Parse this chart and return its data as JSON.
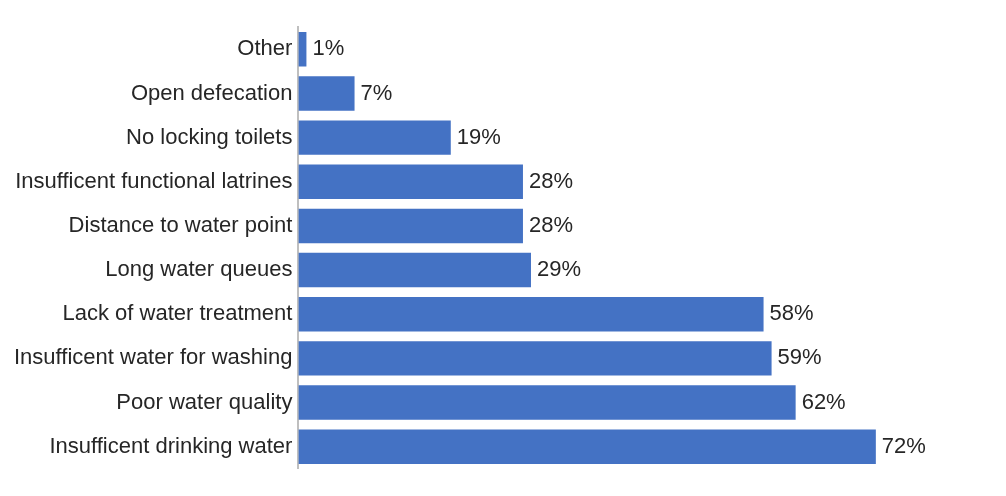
{
  "chart_data": {
    "type": "bar",
    "orientation": "horizontal",
    "color": "#4472c4",
    "categories": [
      "Other",
      "Open defecation",
      "No locking toilets",
      "Insufficent functional latrines",
      "Distance to water point",
      "Long water queues",
      "Lack of water treatment",
      "Insufficent water for washing",
      "Poor water quality",
      "Insufficent drinking water"
    ],
    "values": [
      1,
      7,
      19,
      28,
      28,
      29,
      58,
      59,
      62,
      72
    ],
    "value_labels": [
      "1%",
      "7%",
      "19%",
      "28%",
      "28%",
      "29%",
      "58%",
      "59%",
      "62%",
      "72%"
    ]
  }
}
